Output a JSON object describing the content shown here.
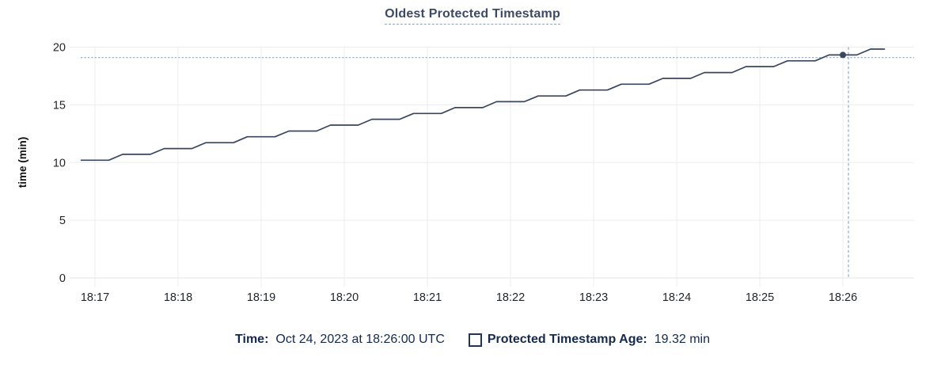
{
  "chart": {
    "title": "Oldest Protected Timestamp"
  },
  "legend": {
    "time_label": "Time:",
    "time_value": "Oct 24, 2023 at 18:26:00 UTC",
    "series_label": "Protected Timestamp Age:",
    "series_value": "19.32 min"
  },
  "chart_data": {
    "type": "line",
    "title": "Oldest Protected Timestamp",
    "xlabel": "",
    "ylabel": "time (min)",
    "ylim": [
      0,
      20
    ],
    "y_ticks": [
      0,
      5,
      10,
      15,
      20
    ],
    "x_ticks": [
      "18:17",
      "18:18",
      "18:19",
      "18:20",
      "18:21",
      "18:22",
      "18:23",
      "18:24",
      "18:25",
      "18:26"
    ],
    "grid": true,
    "legend_position": "bottom",
    "series": [
      {
        "name": "Protected Timestamp Age",
        "unit": "min",
        "start_time": "18:16:50",
        "interval_seconds": 10,
        "values": [
          10.2,
          10.2,
          10.2,
          10.71,
          10.71,
          10.71,
          11.21,
          11.21,
          11.21,
          11.72,
          11.72,
          11.72,
          12.23,
          12.23,
          12.23,
          12.73,
          12.73,
          12.73,
          13.24,
          13.24,
          13.24,
          13.75,
          13.75,
          13.75,
          14.25,
          14.25,
          14.25,
          14.76,
          14.76,
          14.76,
          15.27,
          15.27,
          15.27,
          15.77,
          15.77,
          15.77,
          16.28,
          16.28,
          16.28,
          16.79,
          16.79,
          16.79,
          17.29,
          17.29,
          17.29,
          17.8,
          17.8,
          17.8,
          18.31,
          18.31,
          18.31,
          18.81,
          18.81,
          18.81,
          19.32,
          19.32,
          19.32,
          19.83,
          19.83
        ]
      }
    ],
    "hover": {
      "time": "18:26:00",
      "value": 19.32
    },
    "colors": {
      "line": "#39465f",
      "grid": "#ededed",
      "axis_line": "#e4e4e4",
      "crosshair": "#9fb2c3",
      "tick_text": "#22262c",
      "axis_title_text": "#111111",
      "title": "#3c4a63",
      "legend_text": "#15294d"
    }
  }
}
